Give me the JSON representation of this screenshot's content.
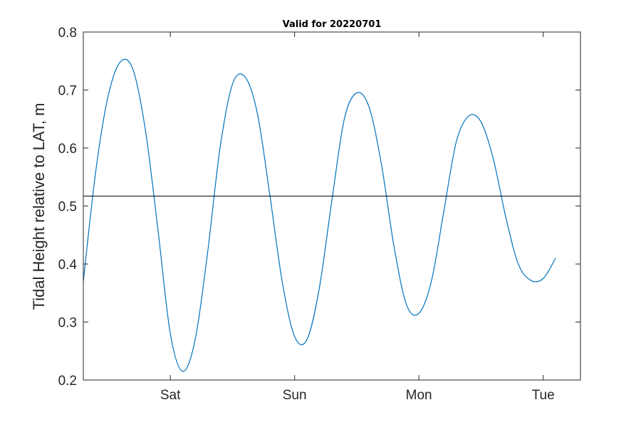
{
  "chart_data": {
    "type": "line",
    "title": "Valid for 20220701",
    "xlabel": "",
    "ylabel": "Tidal Height relative to LAT, m",
    "ylim": [
      0.2,
      0.8
    ],
    "yticks": [
      "0.2",
      "0.3",
      "0.4",
      "0.5",
      "0.6",
      "0.7",
      "0.8"
    ],
    "x_unit": "days",
    "xlim": [
      0,
      4.0
    ],
    "xticks": [
      {
        "value": 0.7,
        "label": "Sat"
      },
      {
        "value": 1.7,
        "label": "Sun"
      },
      {
        "value": 2.7,
        "label": "Mon"
      },
      {
        "value": 3.7,
        "label": "Tue"
      }
    ],
    "grid": false,
    "legend": "none",
    "mean_line": 0.517,
    "series": [
      {
        "color": "#0072BD",
        "points": [
          [
            0.0,
            0.37
          ],
          [
            0.1,
            0.56
          ],
          [
            0.2,
            0.69
          ],
          [
            0.3,
            0.749
          ],
          [
            0.4,
            0.735
          ],
          [
            0.5,
            0.63
          ],
          [
            0.6,
            0.46
          ],
          [
            0.7,
            0.28
          ],
          [
            0.8,
            0.215
          ],
          [
            0.9,
            0.27
          ],
          [
            1.0,
            0.42
          ],
          [
            1.1,
            0.6
          ],
          [
            1.2,
            0.71
          ],
          [
            1.3,
            0.723
          ],
          [
            1.4,
            0.66
          ],
          [
            1.5,
            0.52
          ],
          [
            1.6,
            0.37
          ],
          [
            1.7,
            0.275
          ],
          [
            1.8,
            0.27
          ],
          [
            1.9,
            0.36
          ],
          [
            2.0,
            0.51
          ],
          [
            2.1,
            0.65
          ],
          [
            2.2,
            0.695
          ],
          [
            2.3,
            0.67
          ],
          [
            2.4,
            0.57
          ],
          [
            2.5,
            0.43
          ],
          [
            2.6,
            0.33
          ],
          [
            2.7,
            0.315
          ],
          [
            2.8,
            0.37
          ],
          [
            2.9,
            0.49
          ],
          [
            3.0,
            0.61
          ],
          [
            3.1,
            0.655
          ],
          [
            3.2,
            0.645
          ],
          [
            3.3,
            0.58
          ],
          [
            3.4,
            0.48
          ],
          [
            3.5,
            0.4
          ],
          [
            3.6,
            0.372
          ],
          [
            3.7,
            0.375
          ],
          [
            3.8,
            0.41
          ]
        ]
      }
    ]
  },
  "colors": {
    "series": "#0072BD",
    "axes": "#262626",
    "mean_line": "#000000"
  }
}
